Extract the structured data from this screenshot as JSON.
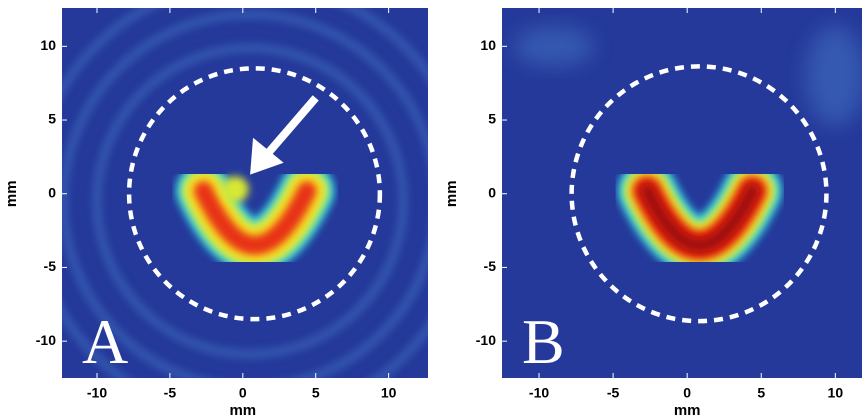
{
  "chart_data": [
    {
      "type": "heatmap",
      "panel_label": "A",
      "xlabel": "mm",
      "ylabel": "mm",
      "xlim": [
        -12.4,
        12.7
      ],
      "ylim": [
        -12.5,
        12.6
      ],
      "xticks": [
        -10,
        -5,
        0,
        5,
        10
      ],
      "yticks": [
        -10,
        -5,
        0,
        5,
        10
      ]
    },
    {
      "type": "heatmap",
      "panel_label": "B",
      "xlabel": "mm",
      "ylabel": "mm",
      "xlim": [
        -12.5,
        11.8
      ],
      "ylim": [
        -12.5,
        12.6
      ],
      "xticks": [
        -10,
        -5,
        0,
        5,
        10
      ],
      "yticks": [
        -10,
        -5,
        0,
        5,
        10
      ]
    }
  ]
}
